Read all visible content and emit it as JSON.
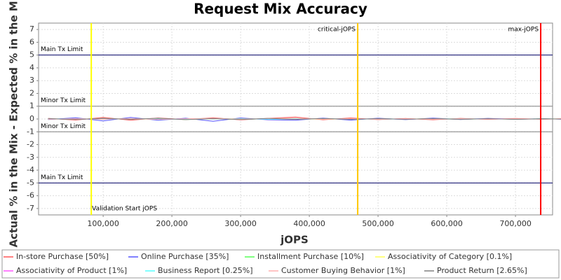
{
  "chart_data": {
    "type": "line",
    "title": "Request Mix Accuracy",
    "x_label": "jOPS",
    "y_label": "Actual % in the Mix - Expected % in the Mix",
    "xlim": [
      6000,
      754000
    ],
    "ylim": [
      -7.5,
      7.5
    ],
    "xticks": [
      {
        "value": 100000,
        "label": "100,000"
      },
      {
        "value": 200000,
        "label": "200,000"
      },
      {
        "value": 300000,
        "label": "300,000"
      },
      {
        "value": 400000,
        "label": "400,000"
      },
      {
        "value": 500000,
        "label": "500,000"
      },
      {
        "value": 600000,
        "label": "600,000"
      },
      {
        "value": 700000,
        "label": "700,000"
      }
    ],
    "yticks": [
      -7,
      -6,
      -5,
      -4,
      -3,
      -2,
      -1,
      0,
      1,
      2,
      3,
      4,
      5,
      6,
      7
    ],
    "grid": true,
    "hlines": [
      {
        "value": 5,
        "label": "Main Tx Limit",
        "color": "#000066"
      },
      {
        "value": 1,
        "label": "Minor Tx Limit",
        "color": "#808080"
      },
      {
        "value": -1,
        "label": "Minor Tx Limit",
        "color": "#808080"
      },
      {
        "value": -5,
        "label": "Main Tx Limit",
        "color": "#000066"
      }
    ],
    "vlines": [
      {
        "value": 82700,
        "label": "Validation Start jOPS",
        "color": "#ffff00"
      },
      {
        "value": 470400,
        "label": "critical-jOPS",
        "color": "#ffc800"
      },
      {
        "value": 736700,
        "label": "max-jOPS",
        "color": "#ff0000"
      }
    ],
    "x": [
      20000,
      60000,
      100000,
      140000,
      180000,
      220000,
      260000,
      300000,
      340000,
      380000,
      420000,
      460000,
      500000,
      540000,
      580000,
      620000,
      660000,
      700000,
      740000,
      770000
    ],
    "series": [
      {
        "name": "In-store Purchase [50%]",
        "color": "#ff5555",
        "values": [
          0.05,
          -0.08,
          0.12,
          -0.1,
          0.08,
          -0.05,
          0.1,
          -0.07,
          0.05,
          0.15,
          -0.06,
          0.08,
          -0.05,
          0.04,
          -0.06,
          0.05,
          -0.03,
          0.04,
          -0.02,
          0.03
        ]
      },
      {
        "name": "Online Purchase [35%]",
        "color": "#5555ff",
        "values": [
          -0.04,
          0.1,
          -0.15,
          0.12,
          -0.1,
          0.06,
          -0.18,
          0.08,
          -0.06,
          -0.1,
          0.07,
          -0.09,
          0.06,
          -0.05,
          0.07,
          -0.04,
          0.05,
          -0.03,
          0.03,
          -0.02
        ]
      },
      {
        "name": "Installment Purchase [10%]",
        "color": "#55ff55",
        "values": [
          0.02,
          -0.03,
          0.04,
          -0.02,
          0.03,
          -0.04,
          0.02,
          -0.03,
          0.02,
          -0.02,
          0.03,
          -0.02,
          0.02,
          -0.01,
          0.02,
          -0.02,
          0.01,
          -0.01,
          0.01,
          0.0
        ]
      },
      {
        "name": "Associativity of Category [0.1%]",
        "color": "#ffff55",
        "values": [
          0.0,
          0.0,
          0.01,
          0.0,
          -0.01,
          0.0,
          0.0,
          0.01,
          0.0,
          0.0,
          -0.01,
          0.0,
          0.0,
          0.0,
          0.01,
          0.0,
          0.0,
          0.0,
          0.0,
          0.0
        ]
      },
      {
        "name": "Associativity of Product [1%]",
        "color": "#ff55ff",
        "values": [
          0.01,
          -0.02,
          0.02,
          -0.01,
          0.01,
          -0.02,
          0.02,
          -0.01,
          0.01,
          -0.01,
          0.02,
          -0.01,
          0.01,
          -0.01,
          0.01,
          -0.01,
          0.01,
          0.0,
          0.0,
          0.0
        ]
      },
      {
        "name": "Business Report [0.25%]",
        "color": "#55ffff",
        "values": [
          0.0,
          0.01,
          -0.01,
          0.01,
          0.0,
          -0.01,
          0.01,
          0.0,
          -0.01,
          0.0,
          0.01,
          0.0,
          -0.01,
          0.0,
          0.0,
          0.01,
          0.0,
          0.0,
          0.0,
          0.0
        ]
      },
      {
        "name": "Customer Buying Behavior [1%]",
        "color": "#ffafaf",
        "values": [
          -0.02,
          0.03,
          -0.02,
          0.04,
          -0.03,
          0.02,
          0.05,
          -0.02,
          0.03,
          0.06,
          -0.02,
          0.03,
          -0.02,
          0.02,
          -0.03,
          0.02,
          -0.01,
          0.02,
          -0.01,
          0.01
        ]
      },
      {
        "name": "Product Return [2.65%]",
        "color": "#808080",
        "values": [
          0.03,
          -0.04,
          0.05,
          -0.03,
          0.06,
          -0.05,
          0.03,
          -0.04,
          0.05,
          -0.03,
          0.04,
          -0.03,
          0.03,
          -0.02,
          0.03,
          -0.02,
          0.02,
          -0.02,
          0.01,
          -0.01
        ]
      }
    ]
  }
}
